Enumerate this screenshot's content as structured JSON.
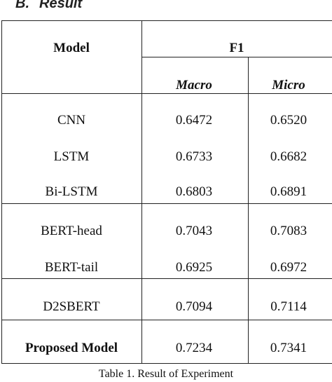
{
  "section": {
    "number": "B.",
    "title": "Result"
  },
  "table": {
    "header": {
      "model": "Model",
      "group": "F1",
      "macro": "Macro",
      "micro": "Micro"
    },
    "rows": [
      {
        "model": "CNN",
        "macro": "0.6472",
        "micro": "0.6520"
      },
      {
        "model": "LSTM",
        "macro": "0.6733",
        "micro": "0.6682"
      },
      {
        "model": "Bi-LSTM",
        "macro": "0.6803",
        "micro": "0.6891"
      },
      {
        "model": "BERT-head",
        "macro": "0.7043",
        "micro": "0.7083"
      },
      {
        "model": "BERT-tail",
        "macro": "0.6925",
        "micro": "0.6972"
      },
      {
        "model": "D2SBERT",
        "macro": "0.7094",
        "micro": "0.7114"
      },
      {
        "model": "Proposed Model",
        "macro": "0.7234",
        "micro": "0.7341"
      }
    ]
  },
  "caption": "Table 1. Result of Experiment"
}
